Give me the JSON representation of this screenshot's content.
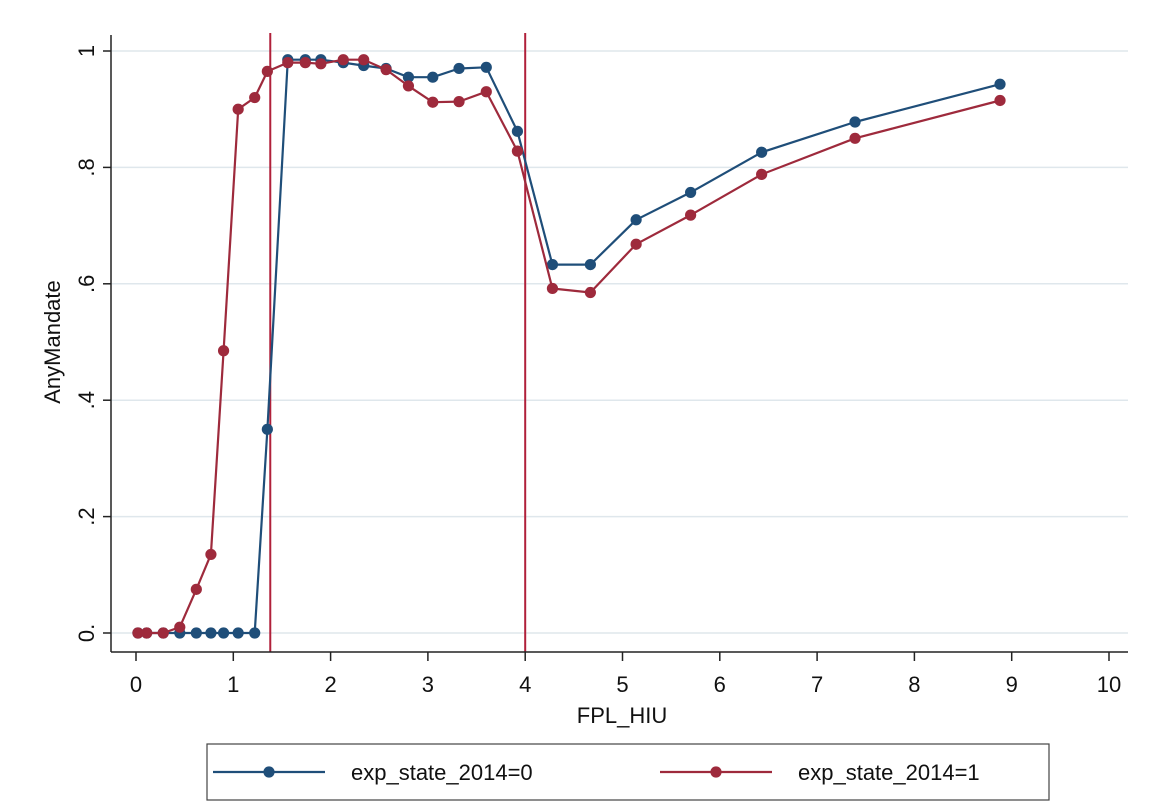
{
  "chart_data": {
    "type": "line",
    "xlabel": "FPL_HIU",
    "ylabel": "AnyMandate",
    "xlim": [
      0,
      10
    ],
    "ylim": [
      0,
      1
    ],
    "x_ticks": [
      0,
      1,
      2,
      3,
      4,
      5,
      6,
      7,
      8,
      9,
      10
    ],
    "x_tick_labels": [
      "0",
      "1",
      "2",
      "3",
      "4",
      "5",
      "6",
      "7",
      "8",
      "9",
      "10"
    ],
    "y_ticks": [
      0,
      0.2,
      0.4,
      0.6,
      0.8,
      1
    ],
    "y_tick_labels": [
      "0.",
      ".2",
      ".4",
      ".6",
      ".8",
      "1"
    ],
    "grid": "horizontal",
    "reference_lines_x": [
      1.38,
      4.0
    ],
    "reference_line_color": "#B0203A",
    "legend_position": "bottom",
    "series": [
      {
        "name": "exp_state_2014=0",
        "color": "#1F4E79",
        "points": [
          [
            0.02,
            0.0
          ],
          [
            0.11,
            0.0
          ],
          [
            0.28,
            0.0
          ],
          [
            0.45,
            0.0
          ],
          [
            0.62,
            0.0
          ],
          [
            0.77,
            0.0
          ],
          [
            0.9,
            0.0
          ],
          [
            1.05,
            0.0
          ],
          [
            1.22,
            0.0
          ],
          [
            1.35,
            0.35
          ],
          [
            1.56,
            0.985
          ],
          [
            1.74,
            0.985
          ],
          [
            1.9,
            0.985
          ],
          [
            2.13,
            0.98
          ],
          [
            2.34,
            0.975
          ],
          [
            2.57,
            0.97
          ],
          [
            2.8,
            0.955
          ],
          [
            3.05,
            0.955
          ],
          [
            3.32,
            0.97
          ],
          [
            3.6,
            0.972
          ],
          [
            3.92,
            0.862
          ],
          [
            4.28,
            0.633
          ],
          [
            4.67,
            0.633
          ],
          [
            5.14,
            0.71
          ],
          [
            5.7,
            0.757
          ],
          [
            6.43,
            0.826
          ],
          [
            7.39,
            0.878
          ],
          [
            8.88,
            0.943
          ]
        ]
      },
      {
        "name": "exp_state_2014=1",
        "color": "#9E2A3C",
        "points": [
          [
            0.02,
            0.0
          ],
          [
            0.11,
            0.0
          ],
          [
            0.28,
            0.0
          ],
          [
            0.45,
            0.01
          ],
          [
            0.62,
            0.075
          ],
          [
            0.77,
            0.135
          ],
          [
            0.9,
            0.485
          ],
          [
            1.05,
            0.9
          ],
          [
            1.22,
            0.92
          ],
          [
            1.35,
            0.965
          ],
          [
            1.56,
            0.98
          ],
          [
            1.74,
            0.98
          ],
          [
            1.9,
            0.978
          ],
          [
            2.13,
            0.985
          ],
          [
            2.34,
            0.985
          ],
          [
            2.57,
            0.968
          ],
          [
            2.8,
            0.94
          ],
          [
            3.05,
            0.912
          ],
          [
            3.32,
            0.913
          ],
          [
            3.6,
            0.93
          ],
          [
            3.92,
            0.828
          ],
          [
            4.28,
            0.592
          ],
          [
            4.67,
            0.585
          ],
          [
            5.14,
            0.668
          ],
          [
            5.7,
            0.718
          ],
          [
            6.43,
            0.788
          ],
          [
            7.39,
            0.85
          ],
          [
            8.88,
            0.915
          ]
        ]
      }
    ]
  }
}
